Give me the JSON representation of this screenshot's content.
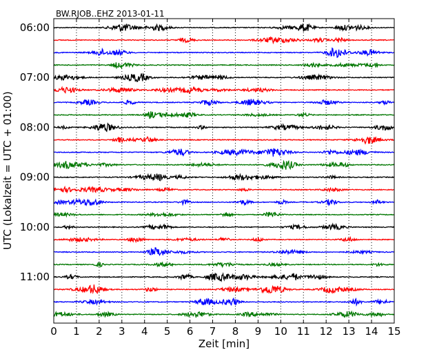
{
  "chart_data": {
    "type": "line",
    "title": "BW.RJOB..EHZ 2013-01-11",
    "xlabel": "Zeit  [min]",
    "ylabel": "UTC (Lokalzeit = UTC + 01:00)",
    "xlim": [
      0,
      15
    ],
    "x_ticks": [
      0,
      1,
      2,
      3,
      4,
      5,
      6,
      7,
      8,
      9,
      10,
      11,
      12,
      13,
      14,
      15
    ],
    "y_tick_labels": [
      "06:00",
      "07:00",
      "08:00",
      "09:00",
      "10:00",
      "11:00"
    ],
    "y_tick_hours": [
      6,
      7,
      8,
      9,
      10,
      11
    ],
    "grid": "vertical dotted at each minute",
    "trace_interval_min": 15,
    "trace_count": 24,
    "start_time": "06:00",
    "color_cycle": [
      "#000000",
      "#ff0000",
      "#0000ff",
      "#007700"
    ]
  }
}
